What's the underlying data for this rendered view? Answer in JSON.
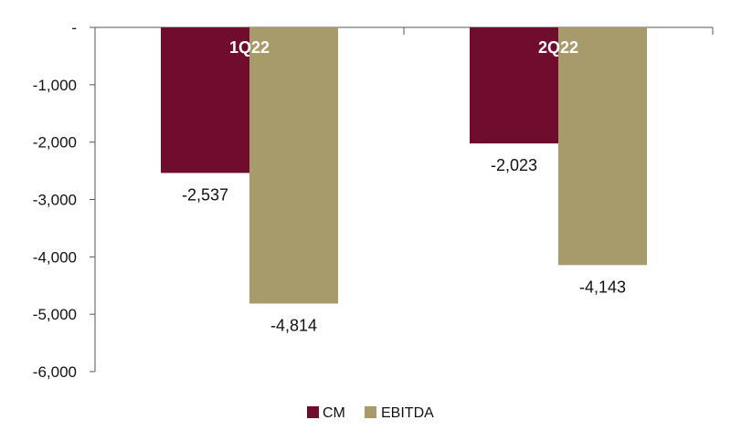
{
  "chart_data": {
    "type": "bar",
    "categories": [
      "1Q22",
      "2Q22"
    ],
    "series": [
      {
        "name": "CM",
        "values": [
          -2537,
          -2023
        ],
        "color": "#700D2E"
      },
      {
        "name": "EBITDA",
        "values": [
          -4814,
          -4143
        ],
        "color": "#A79A6B"
      }
    ],
    "data_labels": [
      [
        "-2,537",
        "-2,023"
      ],
      [
        "-4,814",
        "-4,143"
      ]
    ],
    "ylim": [
      -6000,
      0
    ],
    "yticks": [
      0,
      -1000,
      -2000,
      -3000,
      -4000,
      -5000,
      -6000
    ],
    "ytick_labels": [
      "-",
      "-1,000",
      "-2,000",
      "-3,000",
      "-4,000",
      "-5,000",
      "-6,000"
    ],
    "title": "",
    "xlabel": "",
    "ylabel": "",
    "grid": false,
    "legend_position": "bottom",
    "category_label_color": "#ffffff"
  }
}
